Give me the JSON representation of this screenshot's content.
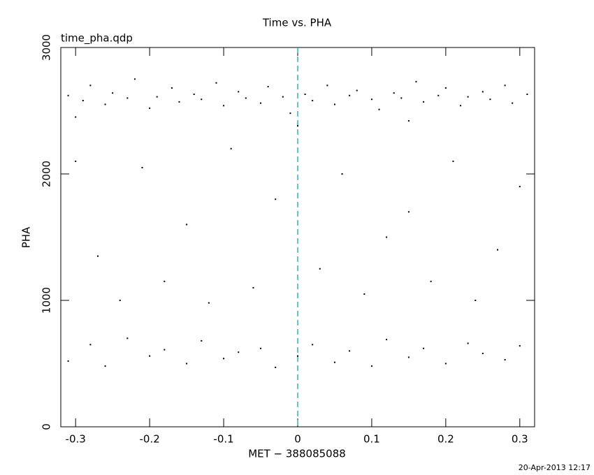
{
  "chart_data": {
    "type": "scatter",
    "title": "Time vs. PHA",
    "annotation": "time_pha.qdp",
    "x_label": "MET − 388085088",
    "y_label": "PHA",
    "footer": "20-Apr-2013 12:17",
    "xlim": [
      -0.32,
      0.32
    ],
    "xticks": [
      -0.3,
      -0.2,
      -0.1,
      0,
      0.1,
      0.2,
      0.3
    ],
    "ylim": [
      0,
      3000
    ],
    "yticks": [
      0,
      1000,
      2000,
      3000
    ],
    "vline": 0,
    "vline_color": "#1aa3b0",
    "series": [
      {
        "color": "#000000",
        "x": [
          -0.31,
          -0.29,
          -0.28,
          -0.26,
          -0.25,
          -0.23,
          -0.22,
          -0.2,
          -0.19,
          -0.17,
          -0.16,
          -0.14,
          -0.13,
          -0.11,
          -0.1,
          -0.08,
          -0.07,
          -0.05,
          -0.04,
          -0.02,
          -0.01,
          0.01,
          0.02,
          0.04,
          0.05,
          0.07,
          0.08,
          0.1,
          0.11,
          0.13,
          0.14,
          0.16,
          0.17,
          0.19,
          0.2,
          0.22,
          0.23,
          0.25,
          0.26,
          0.28,
          0.29,
          0.31,
          -0.3,
          0.0,
          0.15,
          -0.3,
          -0.27,
          -0.24,
          -0.21,
          -0.18,
          -0.15,
          -0.12,
          -0.09,
          -0.06,
          -0.03,
          0.03,
          0.06,
          0.09,
          0.12,
          0.15,
          0.18,
          0.21,
          0.24,
          0.27,
          0.3,
          -0.31,
          -0.28,
          -0.26,
          -0.23,
          -0.2,
          -0.18,
          -0.15,
          -0.13,
          -0.1,
          -0.08,
          -0.05,
          -0.03,
          0.0,
          0.02,
          0.05,
          0.07,
          0.1,
          0.12,
          0.15,
          0.17,
          0.2,
          0.23,
          0.25,
          0.28,
          0.3
        ],
        "values": [
          2620,
          2580,
          2700,
          2550,
          2640,
          2600,
          2750,
          2520,
          2610,
          2680,
          2570,
          2630,
          2590,
          2720,
          2540,
          2650,
          2600,
          2560,
          2690,
          2610,
          2480,
          2630,
          2580,
          2700,
          2550,
          2620,
          2660,
          2590,
          2510,
          2640,
          2600,
          2730,
          2570,
          2620,
          2680,
          2540,
          2610,
          2650,
          2590,
          2700,
          2560,
          2630,
          2450,
          2380,
          2420,
          2100,
          1350,
          1000,
          2050,
          1150,
          1600,
          980,
          2200,
          1100,
          1800,
          1250,
          2000,
          1050,
          1500,
          1700,
          1150,
          2100,
          1000,
          1400,
          1900,
          520,
          650,
          480,
          700,
          560,
          610,
          500,
          680,
          540,
          590,
          620,
          470,
          560,
          650,
          510,
          600,
          480,
          690,
          550,
          620,
          500,
          660,
          580,
          530,
          640
        ]
      }
    ]
  }
}
